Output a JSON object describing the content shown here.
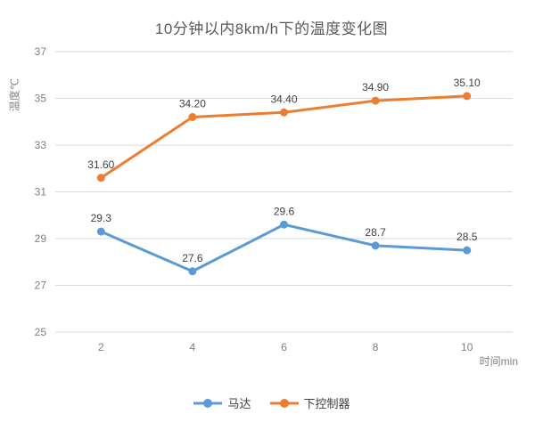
{
  "title": "10分钟以内8km/h下的温度变化图",
  "colors": {
    "grid": "#D9D9D9",
    "tick_text": "#808080",
    "data_label_text": "#404040",
    "title_text": "#595959"
  },
  "chart_data": {
    "type": "line",
    "title": "10分钟以内8km/h下的温度变化图",
    "xlabel": "时间min",
    "ylabel": "温度℃",
    "x": [
      2,
      4,
      6,
      8,
      10
    ],
    "series": [
      {
        "name": "马达",
        "color": "#5B9BD5",
        "values": [
          29.3,
          27.6,
          29.6,
          28.7,
          28.5
        ],
        "labels": [
          "29.3",
          "27.6",
          "29.6",
          "28.7",
          "28.5"
        ]
      },
      {
        "name": "下控制器",
        "color": "#ED7D31",
        "values": [
          31.6,
          34.2,
          34.4,
          34.9,
          35.1
        ],
        "labels": [
          "31.60",
          "34.20",
          "34.40",
          "34.90",
          "35.10"
        ]
      }
    ],
    "ylim": [
      25,
      37
    ],
    "y_ticks": [
      25,
      27,
      29,
      31,
      33,
      35,
      37
    ],
    "grid": "horizontal",
    "legend_position": "bottom"
  }
}
